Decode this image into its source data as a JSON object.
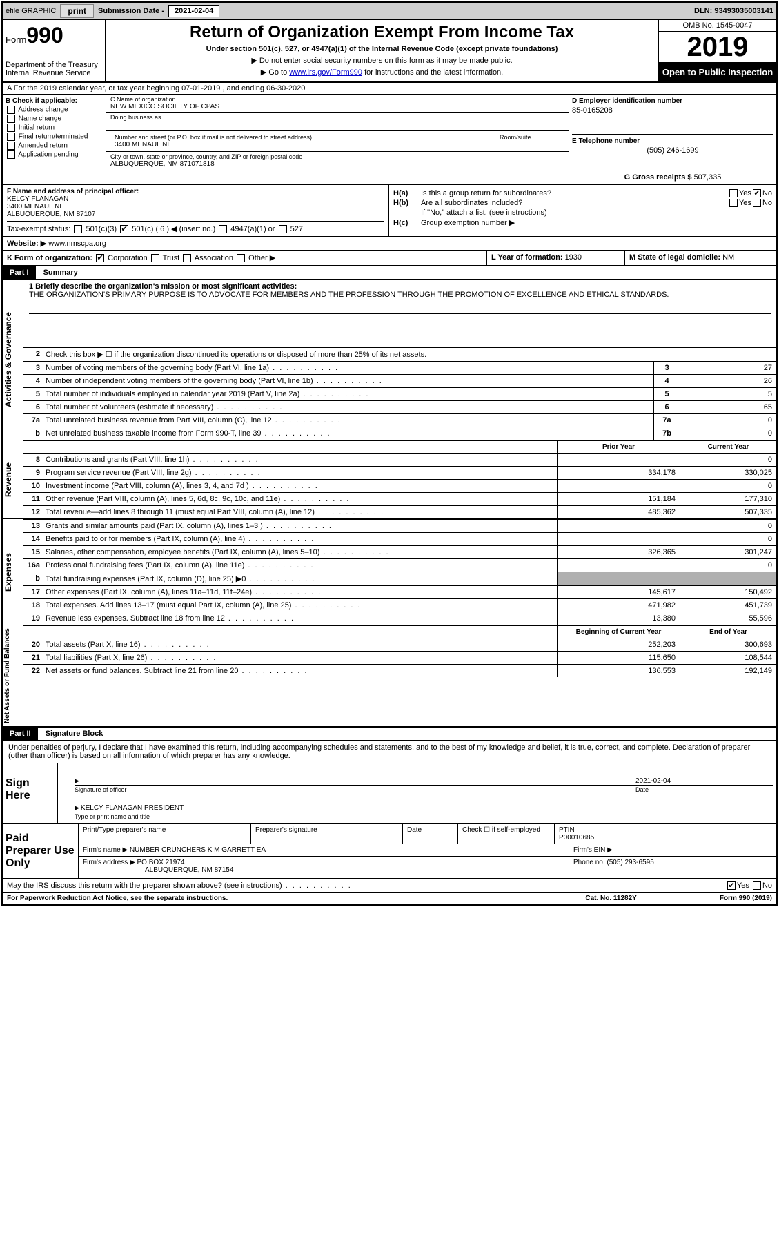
{
  "top": {
    "efile": "efile GRAPHIC",
    "print": "print",
    "sub_label": "Submission Date - ",
    "sub_date": "2021-02-04",
    "dln": "DLN: 93493035003141"
  },
  "header": {
    "form": "Form",
    "num": "990",
    "dept": "Department of the Treasury\nInternal Revenue Service",
    "title": "Return of Organization Exempt From Income Tax",
    "sub1": "Under section 501(c), 527, or 4947(a)(1) of the Internal Revenue Code (except private foundations)",
    "sub2": "▶ Do not enter social security numbers on this form as it may be made public.",
    "sub3_pre": "▶ Go to ",
    "sub3_link": "www.irs.gov/Form990",
    "sub3_post": " for instructions and the latest information.",
    "omb": "OMB No. 1545-0047",
    "year": "2019",
    "open": "Open to Public Inspection"
  },
  "rowA": "A For the 2019 calendar year, or tax year beginning 07-01-2019   , and ending 06-30-2020",
  "B": {
    "label": "B Check if applicable:",
    "items": [
      "Address change",
      "Name change",
      "Initial return",
      "Final return/terminated",
      "Amended return",
      "Application pending"
    ]
  },
  "C": {
    "name_lbl": "C Name of organization",
    "name": "NEW MEXICO SOCIETY OF CPAS",
    "dba_lbl": "Doing business as",
    "street_lbl": "Number and street (or P.O. box if mail is not delivered to street address)",
    "street": "3400 MENAUL NE",
    "suite_lbl": "Room/suite",
    "city_lbl": "City or town, state or province, country, and ZIP or foreign postal code",
    "city": "ALBUQUERQUE, NM  871071818"
  },
  "D": {
    "ein_lbl": "D Employer identification number",
    "ein": "85-0165208",
    "phone_lbl": "E Telephone number",
    "phone": "(505) 246-1699",
    "gross_lbl": "G Gross receipts $ ",
    "gross": "507,335"
  },
  "F": {
    "lbl": "F Name and address of principal officer:",
    "name": "KELCY FLANAGAN",
    "addr1": "3400 MENAUL NE",
    "addr2": "ALBUQUERQUE, NM  87107",
    "tax_lbl": "Tax-exempt status:",
    "opts": {
      "a": "501(c)(3)",
      "b": "501(c) ( 6 ) ◀ (insert no.)",
      "c": "4947(a)(1) or",
      "d": "527"
    }
  },
  "H": {
    "a": "Is this a group return for subordinates?",
    "b": "Are all subordinates included?",
    "b_note": "If \"No,\" attach a list. (see instructions)",
    "c": "Group exemption number ▶"
  },
  "J": {
    "lbl": "Website: ▶",
    "val": "www.nmscpa.org"
  },
  "K": {
    "lbl": "K Form of organization:",
    "opts": [
      "Corporation",
      "Trust",
      "Association",
      "Other ▶"
    ]
  },
  "L": {
    "lbl": "L Year of formation: ",
    "val": "1930"
  },
  "M": {
    "lbl": "M State of legal domicile: ",
    "val": "NM"
  },
  "part1": {
    "hdr": "Part I",
    "title": "Summary",
    "mission_lbl": "1  Briefly describe the organization's mission or most significant activities:",
    "mission": "THE ORGANIZATION'S PRIMARY PURPOSE IS TO ADVOCATE FOR MEMBERS AND THE PROFESSION THROUGH THE PROMOTION OF EXCELLENCE AND ETHICAL STANDARDS.",
    "line2": "Check this box ▶ ☐ if the organization discontinued its operations or disposed of more than 25% of its net assets.",
    "rows_gov": [
      {
        "n": "3",
        "t": "Number of voting members of the governing body (Part VI, line 1a)",
        "b": "3",
        "v": "27"
      },
      {
        "n": "4",
        "t": "Number of independent voting members of the governing body (Part VI, line 1b)",
        "b": "4",
        "v": "26"
      },
      {
        "n": "5",
        "t": "Total number of individuals employed in calendar year 2019 (Part V, line 2a)",
        "b": "5",
        "v": "5"
      },
      {
        "n": "6",
        "t": "Total number of volunteers (estimate if necessary)",
        "b": "6",
        "v": "65"
      },
      {
        "n": "7a",
        "t": "Total unrelated business revenue from Part VIII, column (C), line 12",
        "b": "7a",
        "v": "0"
      },
      {
        "n": "b",
        "t": "Net unrelated business taxable income from Form 990-T, line 39",
        "b": "7b",
        "v": "0"
      }
    ],
    "hdr_prior": "Prior Year",
    "hdr_curr": "Current Year",
    "rows_rev": [
      {
        "n": "8",
        "t": "Contributions and grants (Part VIII, line 1h)",
        "p": "",
        "c": "0"
      },
      {
        "n": "9",
        "t": "Program service revenue (Part VIII, line 2g)",
        "p": "334,178",
        "c": "330,025"
      },
      {
        "n": "10",
        "t": "Investment income (Part VIII, column (A), lines 3, 4, and 7d )",
        "p": "",
        "c": "0"
      },
      {
        "n": "11",
        "t": "Other revenue (Part VIII, column (A), lines 5, 6d, 8c, 9c, 10c, and 11e)",
        "p": "151,184",
        "c": "177,310"
      },
      {
        "n": "12",
        "t": "Total revenue—add lines 8 through 11 (must equal Part VIII, column (A), line 12)",
        "p": "485,362",
        "c": "507,335"
      }
    ],
    "rows_exp": [
      {
        "n": "13",
        "t": "Grants and similar amounts paid (Part IX, column (A), lines 1–3 )",
        "p": "",
        "c": "0"
      },
      {
        "n": "14",
        "t": "Benefits paid to or for members (Part IX, column (A), line 4)",
        "p": "",
        "c": "0"
      },
      {
        "n": "15",
        "t": "Salaries, other compensation, employee benefits (Part IX, column (A), lines 5–10)",
        "p": "326,365",
        "c": "301,247"
      },
      {
        "n": "16a",
        "t": "Professional fundraising fees (Part IX, column (A), line 11e)",
        "p": "",
        "c": "0"
      },
      {
        "n": "b",
        "t": "Total fundraising expenses (Part IX, column (D), line 25) ▶0",
        "p": "shaded",
        "c": "shaded"
      },
      {
        "n": "17",
        "t": "Other expenses (Part IX, column (A), lines 11a–11d, 11f–24e)",
        "p": "145,617",
        "c": "150,492"
      },
      {
        "n": "18",
        "t": "Total expenses. Add lines 13–17 (must equal Part IX, column (A), line 25)",
        "p": "471,982",
        "c": "451,739"
      },
      {
        "n": "19",
        "t": "Revenue less expenses. Subtract line 18 from line 12",
        "p": "13,380",
        "c": "55,596"
      }
    ],
    "hdr_beg": "Beginning of Current Year",
    "hdr_end": "End of Year",
    "rows_net": [
      {
        "n": "20",
        "t": "Total assets (Part X, line 16)",
        "p": "252,203",
        "c": "300,693"
      },
      {
        "n": "21",
        "t": "Total liabilities (Part X, line 26)",
        "p": "115,650",
        "c": "108,544"
      },
      {
        "n": "22",
        "t": "Net assets or fund balances. Subtract line 21 from line 20",
        "p": "136,553",
        "c": "192,149"
      }
    ],
    "tabs": {
      "gov": "Activities & Governance",
      "rev": "Revenue",
      "exp": "Expenses",
      "net": "Net Assets or Fund Balances"
    }
  },
  "part2": {
    "hdr": "Part II",
    "title": "Signature Block",
    "decl": "Under penalties of perjury, I declare that I have examined this return, including accompanying schedules and statements, and to the best of my knowledge and belief, it is true, correct, and complete. Declaration of preparer (other than officer) is based on all information of which preparer has any knowledge.",
    "sign_here": "Sign Here",
    "sig_officer_lbl": "Signature of officer",
    "sig_date": "2021-02-04",
    "sig_date_lbl": "Date",
    "sig_name": "KELCY FLANAGAN  PRESIDENT",
    "sig_name_lbl": "Type or print name and title",
    "paid": "Paid Preparer Use Only",
    "prep_name_lbl": "Print/Type preparer's name",
    "prep_sig_lbl": "Preparer's signature",
    "prep_date_lbl": "Date",
    "prep_check": "Check ☐ if self-employed",
    "ptin_lbl": "PTIN",
    "ptin": "P00010685",
    "firm_name_lbl": "Firm's name    ▶",
    "firm_name": "NUMBER CRUNCHERS K M GARRETT EA",
    "firm_ein_lbl": "Firm's EIN ▶",
    "firm_addr_lbl": "Firm's address ▶",
    "firm_addr1": "PO BOX 21974",
    "firm_addr2": "ALBUQUERQUE, NM  87154",
    "firm_phone_lbl": "Phone no. ",
    "firm_phone": "(505) 293-6595"
  },
  "footer": {
    "discuss": "May the IRS discuss this return with the preparer shown above? (see instructions)",
    "paperwork": "For Paperwork Reduction Act Notice, see the separate instructions.",
    "cat": "Cat. No. 11282Y",
    "form": "Form 990 (2019)"
  }
}
